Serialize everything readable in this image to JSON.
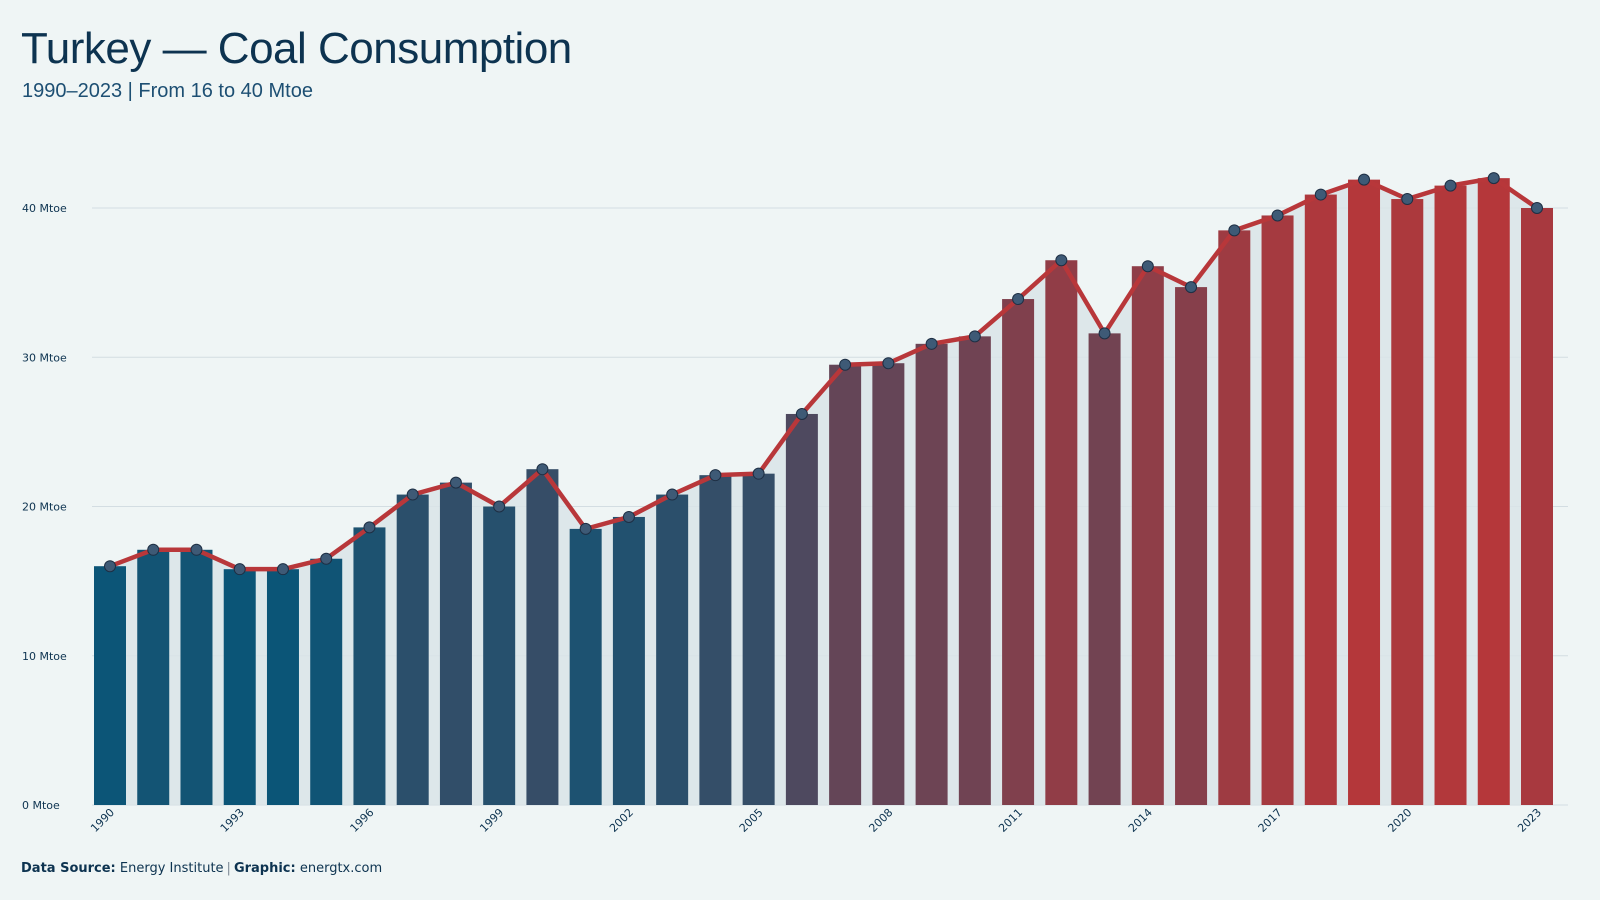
{
  "header": {
    "title": "Turkey — Coal Consumption",
    "subtitle": "1990–2023 | From 16 to 40 Mtoe"
  },
  "footer": {
    "source_label": "Data Source:",
    "source_value": "Energy Institute",
    "separator": "|",
    "graphic_label": "Graphic:",
    "graphic_value": "energtx.com"
  },
  "colors": {
    "bar_start": "#0b5577",
    "bar_end": "#b5373a",
    "line": "#b8373a",
    "marker_fill": "#3e5a76",
    "area": "#d9e4e7",
    "grid": "#d3dde2",
    "text": "#0d3350"
  },
  "chart_data": {
    "type": "bar",
    "x": [
      1990,
      1991,
      1992,
      1993,
      1994,
      1995,
      1996,
      1997,
      1998,
      1999,
      2000,
      2001,
      2002,
      2003,
      2004,
      2005,
      2006,
      2007,
      2008,
      2009,
      2010,
      2011,
      2012,
      2013,
      2014,
      2015,
      2016,
      2017,
      2018,
      2019,
      2020,
      2021,
      2022,
      2023
    ],
    "values": [
      16.0,
      17.1,
      17.1,
      15.8,
      15.8,
      16.5,
      18.6,
      20.8,
      21.6,
      20.0,
      22.5,
      18.5,
      19.3,
      20.8,
      22.1,
      22.2,
      26.2,
      29.5,
      29.6,
      30.9,
      31.4,
      33.9,
      36.5,
      31.6,
      36.1,
      34.7,
      38.5,
      39.5,
      40.9,
      41.9,
      40.6,
      41.5,
      42.0,
      40.0
    ],
    "x_tick_labels": [
      "1990",
      "1993",
      "1996",
      "1999",
      "2002",
      "2005",
      "2008",
      "2011",
      "2014",
      "2017",
      "2020",
      "2023"
    ],
    "y_tick_labels": [
      "0 Mtoe",
      "10 Mtoe",
      "20 Mtoe",
      "30 Mtoe",
      "40 Mtoe"
    ],
    "y_ticks": [
      0,
      10,
      20,
      30,
      40
    ],
    "ylim": [
      0,
      40
    ],
    "unit": "Mtoe",
    "overlay": "line-with-markers",
    "grid": true,
    "legend": "none"
  }
}
